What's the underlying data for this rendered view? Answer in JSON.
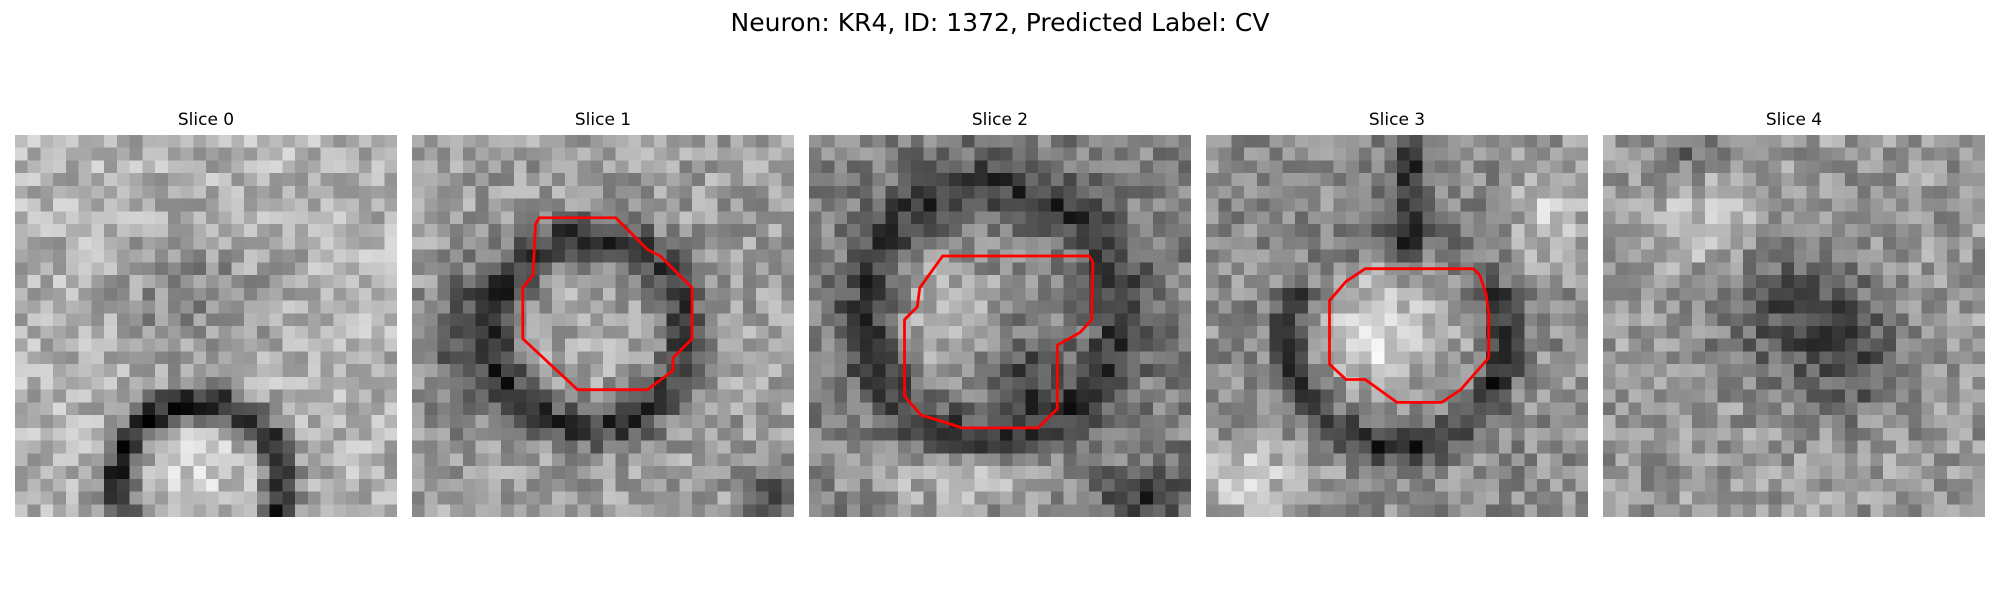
{
  "figure": {
    "title": "Neuron: KR4, ID: 1372, Predicted Label: CV",
    "background_color": "#ffffff",
    "contour_color": "#ff0000",
    "colormap": "gray",
    "panels": [
      {
        "title": "Slice 0",
        "has_contour": false
      },
      {
        "title": "Slice 1",
        "has_contour": true
      },
      {
        "title": "Slice 2",
        "has_contour": true
      },
      {
        "title": "Slice 3",
        "has_contour": true
      },
      {
        "title": "Slice 4",
        "has_contour": false
      }
    ]
  }
}
